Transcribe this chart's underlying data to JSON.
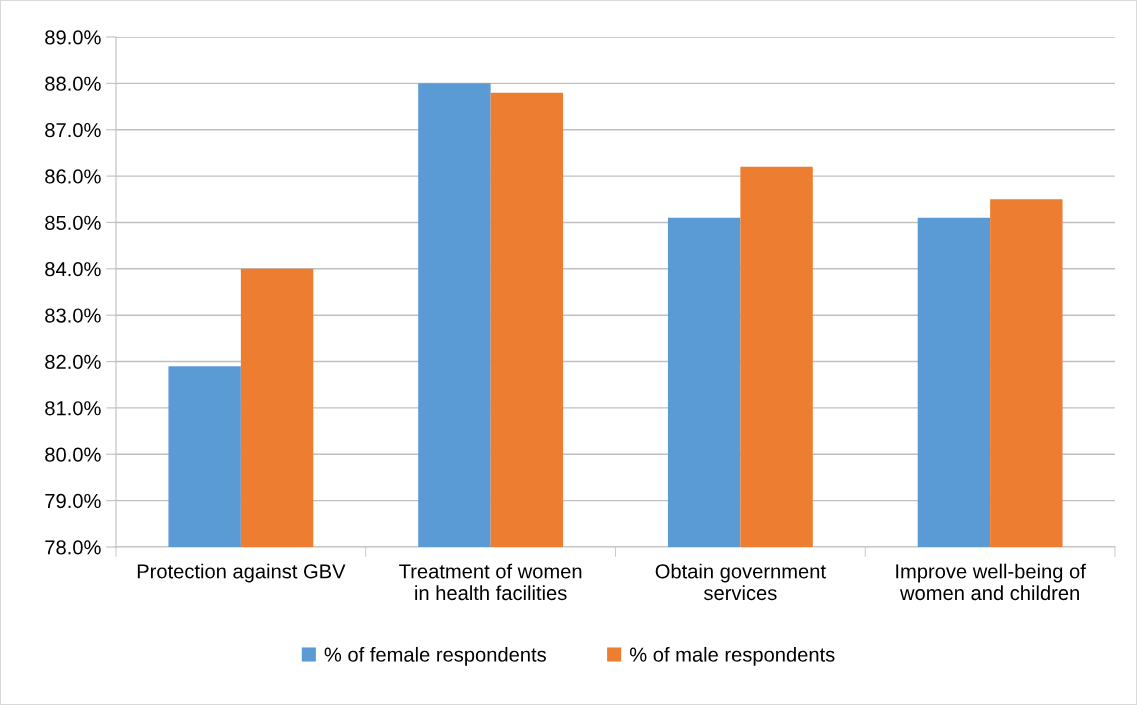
{
  "chart_data": {
    "type": "bar",
    "categories": [
      "Protection against GBV",
      "Treatment of women\nin health facilities",
      "Obtain government\nservices",
      "Improve well-being of\nwomen and children"
    ],
    "series": [
      {
        "name": "% of female respondents",
        "color": "#5b9bd5",
        "values": [
          81.9,
          88.0,
          85.1,
          85.1
        ]
      },
      {
        "name": "% of male respondents",
        "color": "#ed7d31",
        "values": [
          84.0,
          87.8,
          86.2,
          85.5
        ]
      }
    ],
    "ylim": [
      78,
      89
    ],
    "yticks": [
      {
        "value": 78,
        "label": "78.0%"
      },
      {
        "value": 79,
        "label": "79.0%"
      },
      {
        "value": 80,
        "label": "80.0%"
      },
      {
        "value": 81,
        "label": "81.0%"
      },
      {
        "value": 82,
        "label": "82.0%"
      },
      {
        "value": 83,
        "label": "83.0%"
      },
      {
        "value": 84,
        "label": "84.0%"
      },
      {
        "value": 85,
        "label": "85.0%"
      },
      {
        "value": 86,
        "label": "86.0%"
      },
      {
        "value": 87,
        "label": "87.0%"
      },
      {
        "value": 88,
        "label": "88.0%"
      },
      {
        "value": 89,
        "label": "89.0%"
      }
    ],
    "grid": "y",
    "legend": "bottom"
  }
}
